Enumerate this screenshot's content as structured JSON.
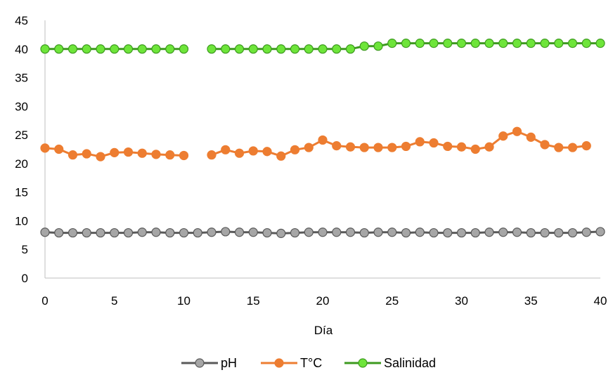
{
  "chart_data": {
    "type": "line",
    "xlabel": "Día",
    "ylabel": "",
    "xlim": [
      0,
      40
    ],
    "ylim": [
      0,
      45
    ],
    "xticks": [
      "0",
      "5",
      "10",
      "15",
      "20",
      "25",
      "30",
      "35",
      "40"
    ],
    "yticks": [
      "0",
      "5",
      "10",
      "15",
      "20",
      "25",
      "30",
      "35",
      "40",
      "45"
    ],
    "grid": false,
    "legend_position": "bottom",
    "series": [
      {
        "name": "pH",
        "color": "#595959",
        "marker_fill": "#a6a6a6",
        "x": [
          0,
          1,
          2,
          3,
          4,
          5,
          6,
          7,
          8,
          9,
          10,
          11,
          12,
          13,
          14,
          15,
          16,
          17,
          18,
          19,
          20,
          21,
          22,
          23,
          24,
          25,
          26,
          27,
          28,
          29,
          30,
          31,
          32,
          33,
          34,
          35,
          36,
          37,
          38,
          39,
          40
        ],
        "y": [
          8.0,
          7.9,
          7.9,
          7.9,
          7.9,
          7.9,
          7.9,
          8.0,
          8.0,
          7.9,
          7.9,
          7.9,
          8.0,
          8.1,
          8.0,
          8.0,
          7.9,
          7.8,
          7.9,
          8.0,
          8.0,
          8.0,
          8.0,
          7.9,
          8.0,
          8.0,
          7.9,
          8.0,
          7.9,
          7.9,
          7.9,
          7.9,
          8.0,
          8.0,
          8.0,
          7.9,
          7.9,
          7.9,
          7.9,
          8.0,
          8.1
        ]
      },
      {
        "name": "T°C",
        "color": "#ed7d31",
        "marker_fill": "#ed7d31",
        "x": [
          0,
          1,
          2,
          3,
          4,
          5,
          6,
          7,
          8,
          9,
          10,
          12,
          13,
          14,
          15,
          16,
          17,
          18,
          19,
          20,
          21,
          22,
          23,
          24,
          25,
          26,
          27,
          28,
          29,
          30,
          31,
          32,
          33,
          34,
          35,
          36,
          37,
          38,
          39
        ],
        "y": [
          22.7,
          22.5,
          21.5,
          21.7,
          21.2,
          21.9,
          22.0,
          21.8,
          21.6,
          21.5,
          21.4,
          21.5,
          22.4,
          21.8,
          22.2,
          22.1,
          21.3,
          22.4,
          22.8,
          24.1,
          23.1,
          22.9,
          22.8,
          22.8,
          22.8,
          23.0,
          23.8,
          23.6,
          23.0,
          22.9,
          22.5,
          22.9,
          24.8,
          25.6,
          24.6,
          23.3,
          22.8,
          22.8,
          23.1
        ]
      },
      {
        "name": "Salinidad",
        "color": "#3d9a1f",
        "marker_fill": "#6ee53a",
        "x": [
          0,
          1,
          2,
          3,
          4,
          5,
          6,
          7,
          8,
          9,
          10,
          12,
          13,
          14,
          15,
          16,
          17,
          18,
          19,
          20,
          21,
          22,
          23,
          24,
          25,
          26,
          27,
          28,
          29,
          30,
          31,
          32,
          33,
          34,
          35,
          36,
          37,
          38,
          39,
          40
        ],
        "y": [
          40,
          40,
          40,
          40,
          40,
          40,
          40,
          40,
          40,
          40,
          40,
          40,
          40,
          40,
          40,
          40,
          40,
          40,
          40,
          40,
          40,
          40,
          40.5,
          40.5,
          41,
          41,
          41,
          41,
          41,
          41,
          41,
          41,
          41,
          41,
          41,
          41,
          41,
          41,
          41,
          41
        ]
      }
    ]
  }
}
